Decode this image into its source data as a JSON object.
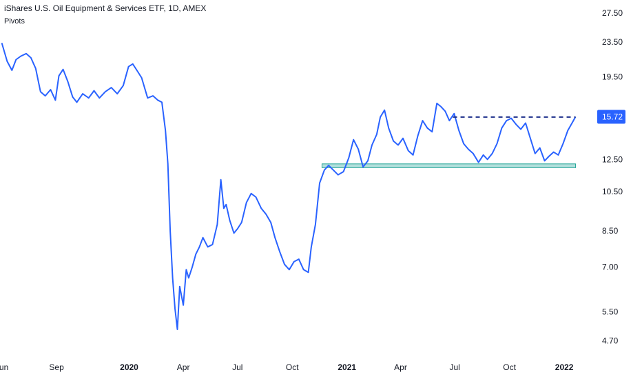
{
  "header": {
    "title": "iShares U.S. Oil Equipment & Services ETF, 1D, AMEX",
    "subtitle": "Pivots"
  },
  "colors": {
    "line": "#2962ff",
    "resistance": "#1a2d8a",
    "support_fill": "#b2dfdb",
    "support_stroke": "#26a69a",
    "price_tag_bg": "#2962ff",
    "price_tag_text": "#ffffff",
    "axis_text": "#131722"
  },
  "chart_data": {
    "type": "line",
    "title": "iShares U.S. Oil Equipment & Services ETF, 1D, AMEX",
    "xlabel": "",
    "ylabel": "",
    "y_scale": "log",
    "ylim": [
      4.2,
      29.5
    ],
    "xlim": [
      "2019-05-29",
      "2022-02-15"
    ],
    "y_ticks": [
      "27.50",
      "23.50",
      "19.50",
      "15.72",
      "12.50",
      "10.50",
      "8.50",
      "7.00",
      "5.50",
      "4.70"
    ],
    "y_tick_values": [
      27.5,
      23.5,
      19.5,
      12.5,
      10.5,
      8.5,
      7.0,
      5.5,
      4.7
    ],
    "x_ticks": [
      {
        "label": "Jun",
        "date": "2019-06-01",
        "bold": false
      },
      {
        "label": "Sep",
        "date": "2019-09-01",
        "bold": false
      },
      {
        "label": "2020",
        "date": "2020-01-01",
        "bold": true
      },
      {
        "label": "Apr",
        "date": "2020-04-01",
        "bold": false
      },
      {
        "label": "Jul",
        "date": "2020-07-01",
        "bold": false
      },
      {
        "label": "Oct",
        "date": "2020-10-01",
        "bold": false
      },
      {
        "label": "2021",
        "date": "2021-01-01",
        "bold": true
      },
      {
        "label": "Apr",
        "date": "2021-04-01",
        "bold": false
      },
      {
        "label": "Jul",
        "date": "2021-07-01",
        "bold": false
      },
      {
        "label": "Oct",
        "date": "2021-10-01",
        "bold": false
      },
      {
        "label": "2022",
        "date": "2022-01-01",
        "bold": true
      }
    ],
    "last_price": 15.72,
    "last_price_label": "15.72",
    "resistance": {
      "value": 15.7,
      "from": "2021-06-28",
      "to": "2022-01-20",
      "style": "dashed"
    },
    "support": {
      "low": 11.95,
      "high": 12.2,
      "from": "2020-11-20",
      "to": "2022-01-20"
    },
    "series": [
      {
        "x": [
          "2019-06-01",
          "2019-06-10",
          "2019-06-18",
          "2019-06-25",
          "2019-07-03",
          "2019-07-12",
          "2019-07-20",
          "2019-07-28",
          "2019-08-05",
          "2019-08-13",
          "2019-08-22",
          "2019-08-30",
          "2019-09-05",
          "2019-09-12",
          "2019-09-20",
          "2019-09-28",
          "2019-10-05",
          "2019-10-15",
          "2019-10-25",
          "2019-11-03",
          "2019-11-12",
          "2019-11-22",
          "2019-12-02",
          "2019-12-12",
          "2019-12-22",
          "2019-12-31",
          "2020-01-07",
          "2020-01-14",
          "2020-01-22",
          "2020-02-01",
          "2020-02-10",
          "2020-02-18",
          "2020-02-25",
          "2020-03-02",
          "2020-03-06",
          "2020-03-10",
          "2020-03-14",
          "2020-03-18",
          "2020-03-22",
          "2020-03-26",
          "2020-04-01",
          "2020-04-06",
          "2020-04-10",
          "2020-04-16",
          "2020-04-22",
          "2020-04-28",
          "2020-05-04",
          "2020-05-12",
          "2020-05-20",
          "2020-05-28",
          "2020-06-03",
          "2020-06-08",
          "2020-06-12",
          "2020-06-18",
          "2020-06-25",
          "2020-07-01",
          "2020-07-08",
          "2020-07-16",
          "2020-07-24",
          "2020-08-01",
          "2020-08-10",
          "2020-08-18",
          "2020-08-26",
          "2020-09-02",
          "2020-09-10",
          "2020-09-18",
          "2020-09-26",
          "2020-10-04",
          "2020-10-12",
          "2020-10-20",
          "2020-10-28",
          "2020-11-02",
          "2020-11-09",
          "2020-11-16",
          "2020-11-24",
          "2020-12-01",
          "2020-12-09",
          "2020-12-17",
          "2020-12-26",
          "2021-01-04",
          "2021-01-12",
          "2021-01-20",
          "2021-01-28",
          "2021-02-05",
          "2021-02-12",
          "2021-02-20",
          "2021-02-26",
          "2021-03-05",
          "2021-03-12",
          "2021-03-20",
          "2021-03-28",
          "2021-04-05",
          "2021-04-14",
          "2021-04-22",
          "2021-04-30",
          "2021-05-08",
          "2021-05-16",
          "2021-05-24",
          "2021-06-01",
          "2021-06-08",
          "2021-06-15",
          "2021-06-22",
          "2021-06-30",
          "2021-07-08",
          "2021-07-16",
          "2021-07-24",
          "2021-08-01",
          "2021-08-10",
          "2021-08-18",
          "2021-08-25",
          "2021-09-02",
          "2021-09-10",
          "2021-09-18",
          "2021-09-26",
          "2021-10-04",
          "2021-10-12",
          "2021-10-20",
          "2021-10-28",
          "2021-11-05",
          "2021-11-13",
          "2021-11-21",
          "2021-11-29",
          "2021-12-06",
          "2021-12-14",
          "2021-12-22",
          "2021-12-30",
          "2022-01-07",
          "2022-01-14",
          "2022-01-20"
        ],
        "y": [
          23.4,
          21.2,
          20.2,
          21.4,
          21.8,
          22.1,
          21.6,
          20.4,
          18.0,
          17.6,
          18.2,
          17.2,
          19.6,
          20.3,
          19.0,
          17.5,
          17.0,
          17.8,
          17.4,
          18.1,
          17.4,
          18.0,
          18.4,
          17.8,
          18.6,
          20.6,
          20.9,
          20.2,
          19.4,
          17.4,
          17.6,
          17.2,
          17.0,
          14.6,
          12.2,
          8.5,
          6.6,
          5.6,
          5.0,
          6.3,
          5.7,
          6.9,
          6.6,
          7.0,
          7.5,
          7.8,
          8.2,
          7.8,
          7.9,
          8.8,
          11.2,
          9.6,
          9.8,
          9.0,
          8.4,
          8.6,
          8.9,
          9.9,
          10.4,
          10.2,
          9.6,
          9.3,
          8.9,
          8.2,
          7.6,
          7.1,
          6.9,
          7.2,
          7.3,
          6.9,
          6.8,
          7.8,
          8.8,
          11.0,
          11.8,
          12.1,
          11.8,
          11.5,
          11.7,
          12.6,
          13.9,
          13.2,
          12.0,
          12.4,
          13.5,
          14.3,
          15.7,
          16.3,
          14.8,
          13.8,
          13.5,
          14.0,
          13.1,
          12.8,
          14.2,
          15.4,
          14.8,
          14.5,
          16.9,
          16.6,
          16.2,
          15.4,
          16.0,
          14.6,
          13.6,
          13.2,
          12.9,
          12.3,
          12.8,
          12.5,
          12.9,
          13.6,
          14.8,
          15.4,
          15.6,
          15.1,
          14.7,
          15.2,
          14.0,
          12.9,
          13.3,
          12.4,
          12.7,
          13.0,
          12.8,
          13.6,
          14.6,
          15.2,
          15.72
        ]
      }
    ]
  }
}
